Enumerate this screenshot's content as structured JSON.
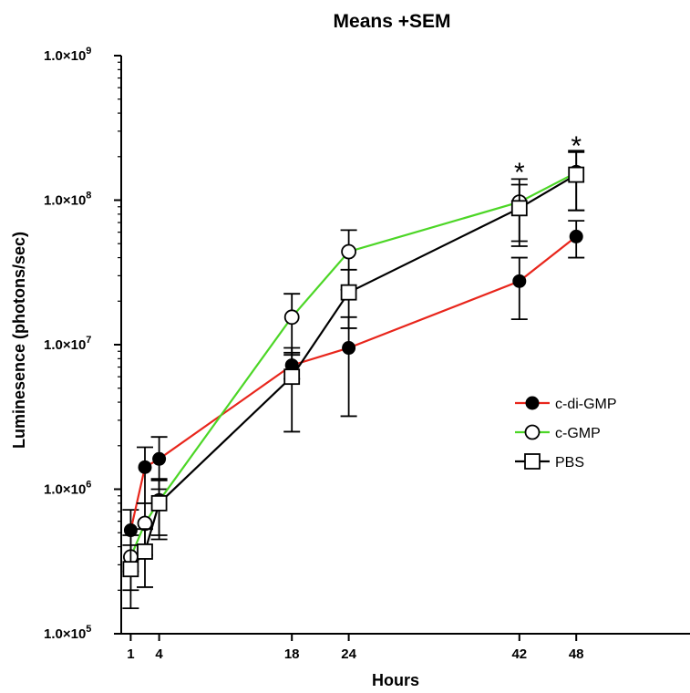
{
  "chart_data": {
    "type": "line",
    "title": "Means +SEM",
    "xlabel": "Hours",
    "ylabel": "Luminesence (photons/sec)",
    "xlim": [
      0,
      60
    ],
    "ylim": [
      100000,
      1000000000
    ],
    "yscale": "log",
    "x_ticks": [
      1,
      4,
      18,
      24,
      42,
      48
    ],
    "x_tick_labels": [
      "1",
      "4",
      "18",
      "24",
      "42",
      "48"
    ],
    "y_ticks": [
      100000,
      1000000,
      10000000,
      100000000,
      1000000000
    ],
    "y_tick_prefix": "1.0×10",
    "y_tick_exponents": [
      "5",
      "6",
      "7",
      "8",
      "9"
    ],
    "grid": false,
    "legend_position": "right",
    "series": [
      {
        "name": "c-di-GMP",
        "color": "#e8261c",
        "marker": "filled-circle",
        "points": [
          {
            "x": 1,
            "y": 520000,
            "err_low": 270000,
            "err_high": 720000
          },
          {
            "x": 2.5,
            "y": 1420000,
            "err_low": 800000,
            "err_high": 1950000
          },
          {
            "x": 4,
            "y": 1620000,
            "err_low": 1000000,
            "err_high": 2300000
          },
          {
            "x": 18,
            "y": 7200000,
            "err_low": 5800000,
            "err_high": 8800000
          },
          {
            "x": 24,
            "y": 9500000,
            "err_low": 3200000,
            "err_high": 15500000
          },
          {
            "x": 42,
            "y": 27500000,
            "err_low": 15000000,
            "err_high": 40000000
          },
          {
            "x": 48,
            "y": 56000000,
            "err_low": 40000000,
            "err_high": 72000000
          }
        ]
      },
      {
        "name": "c-GMP",
        "color": "#4cd626",
        "marker": "open-circle",
        "points": [
          {
            "x": 1,
            "y": 340000,
            "err_low": 200000,
            "err_high": 480000
          },
          {
            "x": 2.5,
            "y": 580000,
            "err_low": 350000,
            "err_high": 800000
          },
          {
            "x": 4,
            "y": 830000,
            "err_low": 480000,
            "err_high": 1180000
          },
          {
            "x": 18,
            "y": 15500000,
            "err_low": 8500000,
            "err_high": 22500000
          },
          {
            "x": 24,
            "y": 44000000,
            "err_low": 24000000,
            "err_high": 62000000
          },
          {
            "x": 42,
            "y": 97000000,
            "err_low": 52000000,
            "err_high": 140000000
          },
          {
            "x": 48,
            "y": 155000000,
            "err_low": 85000000,
            "err_high": 220000000
          }
        ]
      },
      {
        "name": "PBS",
        "color": "#000000",
        "marker": "open-square",
        "points": [
          {
            "x": 1,
            "y": 280000,
            "err_low": 150000,
            "err_high": 410000
          },
          {
            "x": 2.5,
            "y": 370000,
            "err_low": 210000,
            "err_high": 530000
          },
          {
            "x": 4,
            "y": 800000,
            "err_low": 450000,
            "err_high": 1150000
          },
          {
            "x": 18,
            "y": 6000000,
            "err_low": 2500000,
            "err_high": 9500000
          },
          {
            "x": 24,
            "y": 23000000,
            "err_low": 13000000,
            "err_high": 33000000
          },
          {
            "x": 42,
            "y": 88000000,
            "err_low": 48000000,
            "err_high": 128000000
          },
          {
            "x": 48,
            "y": 150000000,
            "err_low": 85000000,
            "err_high": 215000000
          }
        ]
      }
    ],
    "annotations": [
      {
        "text": "*",
        "x": 42,
        "y": 160000000
      },
      {
        "text": "*",
        "x": 48,
        "y": 245000000
      }
    ]
  }
}
